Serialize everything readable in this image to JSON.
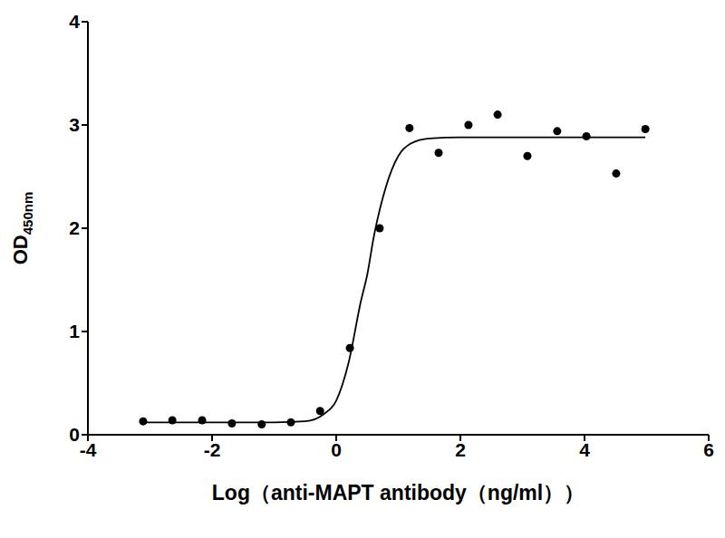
{
  "chart_data": {
    "type": "scatter",
    "x_label": "Log（anti-MAPT antibody（ng/ml））",
    "y_label": "OD450nm",
    "xlim": [
      -4,
      6
    ],
    "xticks": [
      -4,
      -2,
      0,
      2,
      4,
      6
    ],
    "ylim": [
      0,
      4
    ],
    "yticks": [
      0,
      1,
      2,
      3,
      4
    ],
    "grid": false,
    "series": [
      {
        "type": "scatter",
        "color": "#000000",
        "marker": "circle",
        "x": [
          -3.11,
          -2.64,
          -2.16,
          -1.68,
          -1.2,
          -0.73,
          -0.26,
          0.22,
          0.7,
          1.18,
          1.65,
          2.13,
          2.6,
          3.08,
          3.56,
          4.03,
          4.51,
          4.98
        ],
        "values": [
          0.13,
          0.14,
          0.14,
          0.11,
          0.1,
          0.12,
          0.23,
          0.84,
          2.0,
          2.97,
          2.73,
          3.0,
          3.1,
          2.7,
          2.94,
          2.89,
          2.53,
          2.96
        ]
      },
      {
        "type": "line",
        "color": "#000000",
        "line_style": "solid",
        "x": [
          -3.11,
          -2.0,
          -1.0,
          -0.5,
          -0.2,
          0.0,
          0.2,
          0.4,
          0.5,
          0.6,
          0.8,
          1.0,
          1.2,
          1.5,
          2.0,
          3.0,
          4.0,
          4.98
        ],
        "values": [
          0.12,
          0.12,
          0.12,
          0.13,
          0.2,
          0.33,
          0.7,
          1.3,
          1.55,
          1.9,
          2.4,
          2.7,
          2.82,
          2.87,
          2.88,
          2.88,
          2.88,
          2.88
        ]
      }
    ]
  }
}
